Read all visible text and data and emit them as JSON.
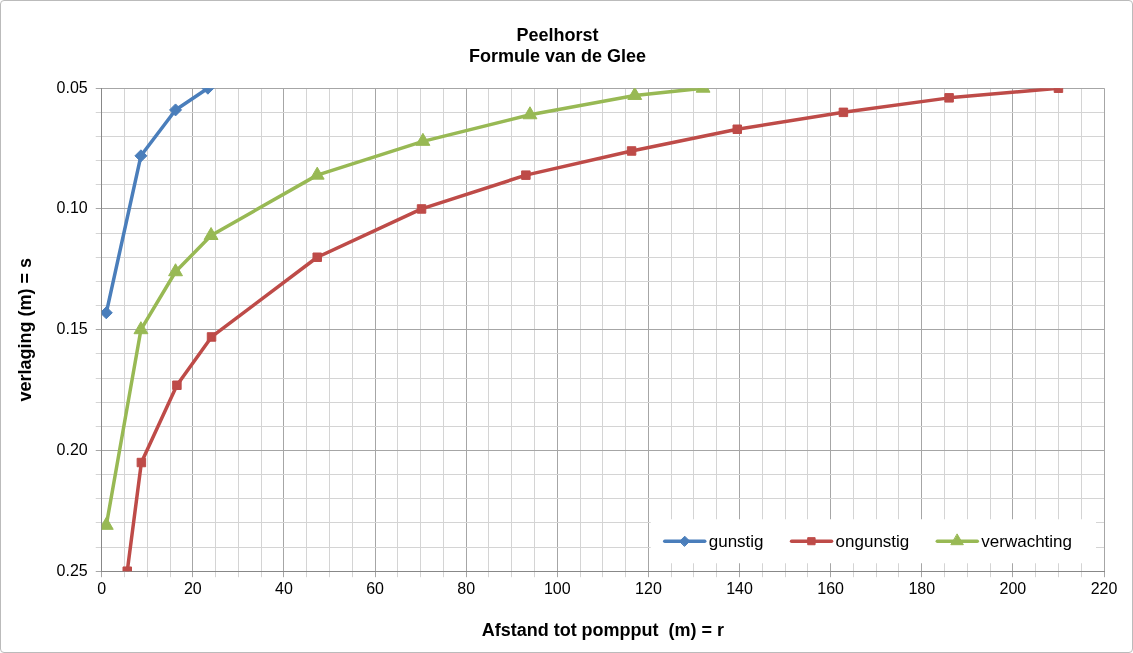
{
  "chart_data": {
    "type": "line",
    "title": [
      "Peelhorst",
      "Formule van de Glee"
    ],
    "xlabel": "Afstand tot pompput  (m) = r",
    "ylabel": "verlaging (m) = s",
    "xlim": [
      0,
      220
    ],
    "ylim": [
      0.25,
      0.05
    ],
    "xticks": [
      0,
      {
        "value": 5,
        "label": null
      },
      {
        "value": 10,
        "label": null
      },
      {
        "value": 15,
        "label": null
      },
      20,
      {
        "value": 25,
        "label": null
      },
      {
        "value": 30,
        "label": null
      },
      {
        "value": 35,
        "label": null
      },
      40,
      {
        "value": 45,
        "label": null
      },
      {
        "value": 50,
        "label": null
      },
      {
        "value": 55,
        "label": null
      },
      60,
      {
        "value": 65,
        "label": null
      },
      {
        "value": 70,
        "label": null
      },
      {
        "value": 75,
        "label": null
      },
      80,
      {
        "value": 85,
        "label": null
      },
      {
        "value": 90,
        "label": null
      },
      {
        "value": 95,
        "label": null
      },
      100,
      {
        "value": 105,
        "label": null
      },
      {
        "value": 110,
        "label": null
      },
      {
        "value": 115,
        "label": null
      },
      120,
      {
        "value": 125,
        "label": null
      },
      {
        "value": 130,
        "label": null
      },
      {
        "value": 135,
        "label": null
      },
      140,
      {
        "value": 145,
        "label": null
      },
      {
        "value": 150,
        "label": null
      },
      {
        "value": 155,
        "label": null
      },
      160,
      {
        "value": 165,
        "label": null
      },
      {
        "value": 170,
        "label": null
      },
      {
        "value": 175,
        "label": null
      },
      180,
      {
        "value": 185,
        "label": null
      },
      {
        "value": 190,
        "label": null
      },
      {
        "value": 195,
        "label": null
      },
      200,
      {
        "value": 205,
        "label": null
      },
      {
        "value": 210,
        "label": null
      },
      {
        "value": 215,
        "label": null
      },
      220
    ],
    "yticks": [
      {
        "value": 0.05,
        "label": "0.05"
      },
      {
        "value": 0.06,
        "label": null
      },
      {
        "value": 0.07,
        "label": null
      },
      {
        "value": 0.08,
        "label": null
      },
      {
        "value": 0.09,
        "label": null
      },
      {
        "value": 0.1,
        "label": "0.10"
      },
      {
        "value": 0.11,
        "label": null
      },
      {
        "value": 0.12,
        "label": null
      },
      {
        "value": 0.13,
        "label": null
      },
      {
        "value": 0.14,
        "label": null
      },
      {
        "value": 0.15,
        "label": "0.15"
      },
      {
        "value": 0.16,
        "label": null
      },
      {
        "value": 0.17,
        "label": null
      },
      {
        "value": 0.18,
        "label": null
      },
      {
        "value": 0.19,
        "label": null
      },
      {
        "value": 0.2,
        "label": "0.20"
      },
      {
        "value": 0.21,
        "label": null
      },
      {
        "value": 0.22,
        "label": null
      },
      {
        "value": 0.23,
        "label": null
      },
      {
        "value": 0.24,
        "label": null
      },
      {
        "value": 0.25,
        "label": "0.25"
      }
    ],
    "grid": true,
    "legend": "bottom right",
    "series": [
      {
        "name": "gunstig",
        "color": "#4a7ebb",
        "marker": "diamond",
        "x": [
          1,
          8.6,
          16.2,
          23.3
        ],
        "values": [
          0.143,
          0.078,
          0.059,
          0.05
        ]
      },
      {
        "name": "ongunstig",
        "color": "#be4b48",
        "marker": "square",
        "x": [
          5.6,
          8.7,
          16.5,
          24.1,
          47.3,
          70.2,
          93.1,
          116.3,
          139.5,
          162.8,
          186,
          210
        ],
        "values": [
          0.25,
          0.205,
          0.173,
          0.153,
          0.12,
          0.1,
          0.086,
          0.076,
          0.067,
          0.06,
          0.054,
          0.05
        ]
      },
      {
        "name": "verwachting",
        "color": "#98b954",
        "marker": "triangle",
        "x": [
          1,
          8.6,
          16.2,
          24,
          47.3,
          70.5,
          94,
          117,
          132
        ],
        "values": [
          0.231,
          0.15,
          0.126,
          0.111,
          0.086,
          0.072,
          0.061,
          0.053,
          0.05
        ]
      }
    ]
  }
}
